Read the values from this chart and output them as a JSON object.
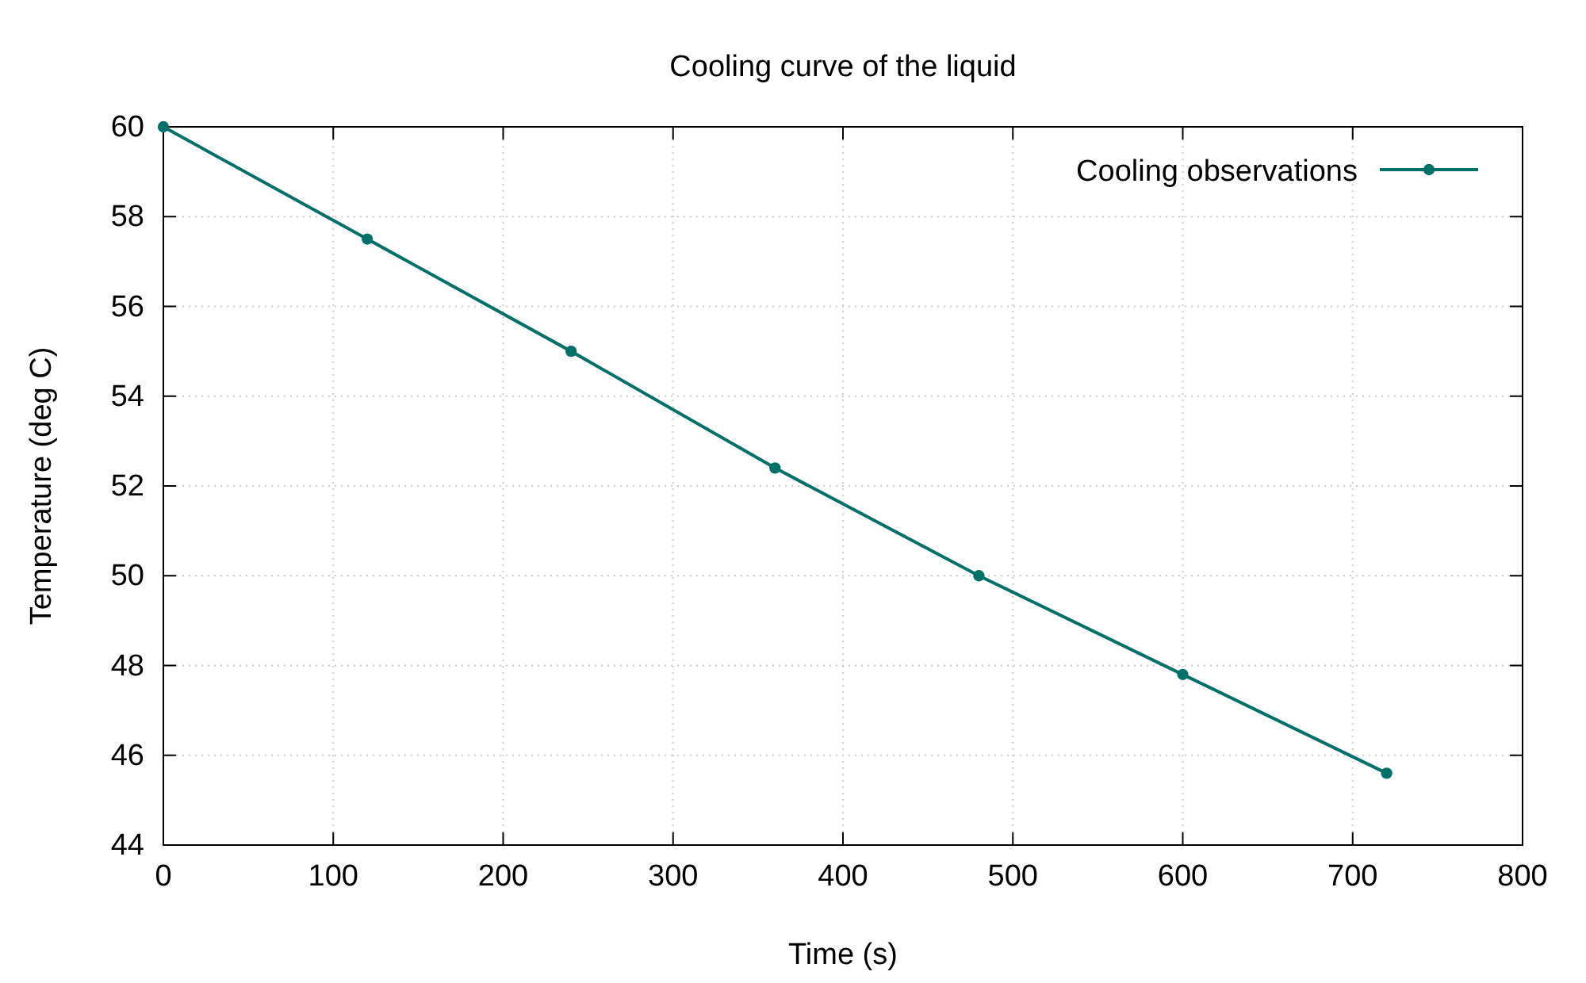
{
  "chart_data": {
    "type": "line",
    "title": "Cooling curve of the liquid",
    "xlabel": "Time (s)",
    "ylabel": "Temperature (deg C)",
    "x": [
      0,
      120,
      240,
      360,
      480,
      600,
      720
    ],
    "series": [
      {
        "name": "Cooling observations",
        "color": "#007068",
        "values": [
          60.0,
          57.5,
          55.0,
          52.4,
          50.0,
          47.8,
          45.6
        ]
      }
    ],
    "xlim": [
      0,
      800
    ],
    "xticks": [
      0,
      100,
      200,
      300,
      400,
      500,
      600,
      700,
      800
    ],
    "ylim": [
      44,
      60
    ],
    "yticks": [
      44,
      46,
      48,
      50,
      52,
      54,
      56,
      58,
      60
    ],
    "grid": true,
    "legend": "top right",
    "marker": "circle",
    "line_style": "solid"
  }
}
